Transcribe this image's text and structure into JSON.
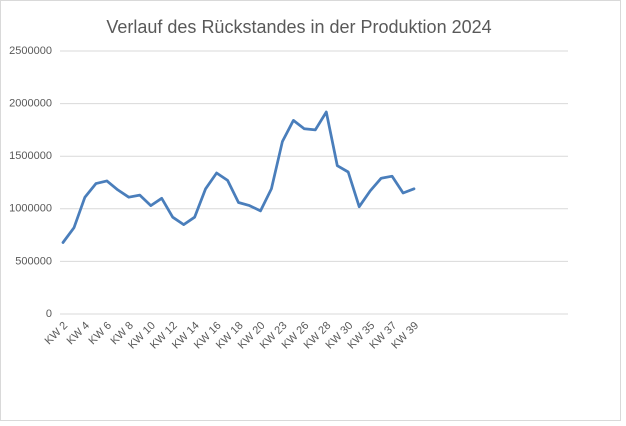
{
  "chart_data": {
    "type": "line",
    "title": "Verlauf des Rückstandes in der Produktion 2024",
    "categories": [
      "KW 2",
      null,
      "KW 4",
      null,
      "KW 6",
      null,
      "KW 8",
      null,
      "KW 10",
      null,
      "KW 12",
      null,
      "KW 14",
      null,
      "KW 16",
      null,
      "KW 18",
      null,
      "KW 20",
      null,
      "KW 23",
      null,
      "KW 26",
      null,
      "KW 28",
      null,
      "KW 30",
      null,
      "KW 35",
      null,
      "KW 37",
      null,
      "KW 39"
    ],
    "series": [
      {
        "color": "#4a7ebb",
        "values": [
          680000,
          820000,
          1110000,
          1240000,
          1265000,
          1180000,
          1110000,
          1130000,
          1030000,
          1100000,
          920000,
          850000,
          920000,
          1190000,
          1340000,
          1270000,
          1060000,
          1030000,
          980000,
          1190000,
          1640000,
          1840000,
          1760000,
          1750000,
          1920000,
          1410000,
          1350000,
          1020000,
          1170000,
          1290000,
          1310000,
          1150000,
          1190000
        ]
      }
    ],
    "ylim": [
      0,
      2500000
    ],
    "yticks": [
      0,
      500000,
      1000000,
      1500000,
      2000000,
      2500000
    ],
    "grid": true
  }
}
